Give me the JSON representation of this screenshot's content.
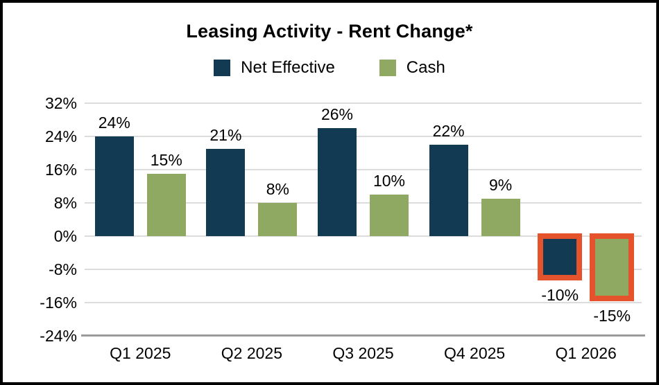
{
  "chart_data": {
    "type": "bar",
    "title": "Leasing Activity - Rent Change*",
    "categories": [
      "Q1 2025",
      "Q2 2025",
      "Q3 2025",
      "Q4 2025",
      "Q1 2026"
    ],
    "series": [
      {
        "name": "Net Effective",
        "color": "#123a52",
        "values": [
          24,
          21,
          26,
          22,
          -10
        ]
      },
      {
        "name": "Cash",
        "color": "#8fa963",
        "values": [
          15,
          8,
          10,
          9,
          -15
        ]
      }
    ],
    "yticks": [
      32,
      24,
      16,
      8,
      0,
      -8,
      -16,
      -24
    ],
    "ylim": [
      -24,
      32
    ],
    "value_suffix": "%",
    "grid": true,
    "legend_position": "top",
    "highlight": {
      "categories": [
        "Q1 2026"
      ],
      "color": "#e4532c"
    },
    "colors": {
      "gridline": "#dcdcdc",
      "axis_line": "#9b9b9b",
      "text": "#000000",
      "frame_border": "#000000",
      "background": "#ffffff"
    }
  }
}
